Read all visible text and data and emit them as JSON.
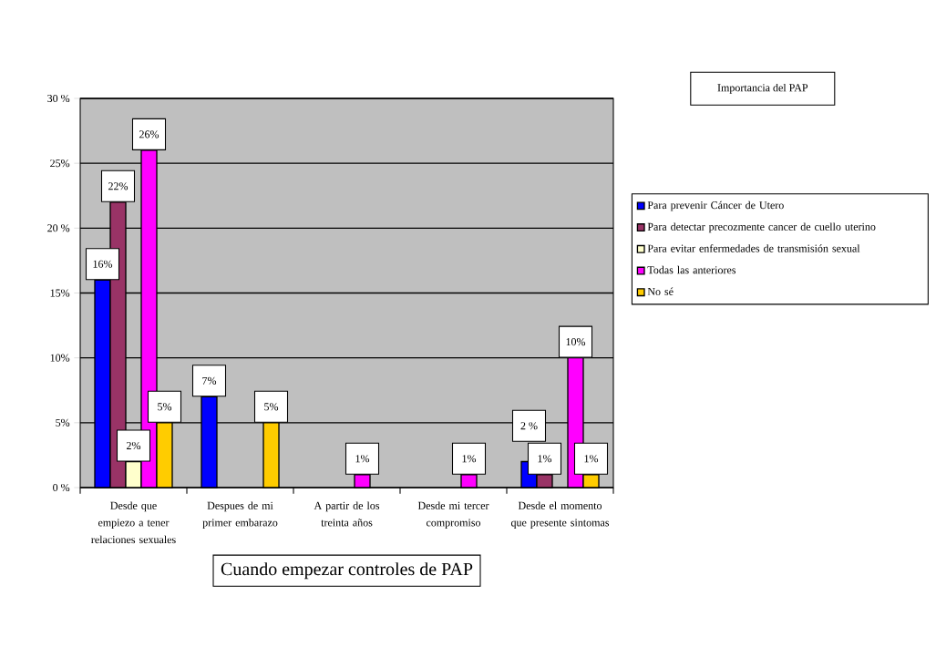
{
  "chart_data": {
    "type": "bar",
    "xlabel": "Cuando empezar controles de PAP",
    "legend_title": "Importancia del PAP",
    "categories": [
      "Desde que empiezo a tener relaciones sexuales",
      "Despues de mi primer embarazo",
      "A partir de los treinta años",
      "Desde mi tercer compromiso",
      "Desde el momento que presente sintomas"
    ],
    "series": [
      {
        "name": "Para prevenir Cáncer de Utero",
        "color": "#0000ff",
        "values": [
          16,
          7,
          null,
          null,
          2
        ],
        "value_labels": [
          "16%",
          "7%",
          null,
          null,
          "2 %"
        ]
      },
      {
        "name": "Para detectar precozmente cancer de cuello uterino",
        "color": "#993366",
        "values": [
          22,
          null,
          null,
          null,
          1
        ],
        "value_labels": [
          "22%",
          null,
          null,
          null,
          "1%"
        ]
      },
      {
        "name": "Para evitar enfermedades de transmisión sexual",
        "color": "#ffffcc",
        "values": [
          2,
          null,
          null,
          null,
          null
        ],
        "value_labels": [
          "2%",
          null,
          null,
          null,
          null
        ]
      },
      {
        "name": "Todas las anteriores",
        "color": "#ff00ff",
        "values": [
          26,
          null,
          1,
          1,
          10
        ],
        "value_labels": [
          "26%",
          null,
          "1%",
          "1%",
          "10%"
        ]
      },
      {
        "name": "No sé",
        "color": "#ffcc00",
        "values": [
          5,
          5,
          null,
          null,
          1
        ],
        "value_labels": [
          "5%",
          "5%",
          null,
          null,
          "1%"
        ]
      }
    ],
    "ylim": [
      0,
      30
    ],
    "yticks": [
      {
        "value": 0,
        "label": "0 %"
      },
      {
        "value": 5,
        "label": "5%"
      },
      {
        "value": 10,
        "label": "10%"
      },
      {
        "value": 15,
        "label": "15%"
      },
      {
        "value": 20,
        "label": "20 %"
      },
      {
        "value": 25,
        "label": "25%"
      },
      {
        "value": 30,
        "label": "30 %"
      }
    ],
    "grid": "y",
    "legend": "right"
  }
}
